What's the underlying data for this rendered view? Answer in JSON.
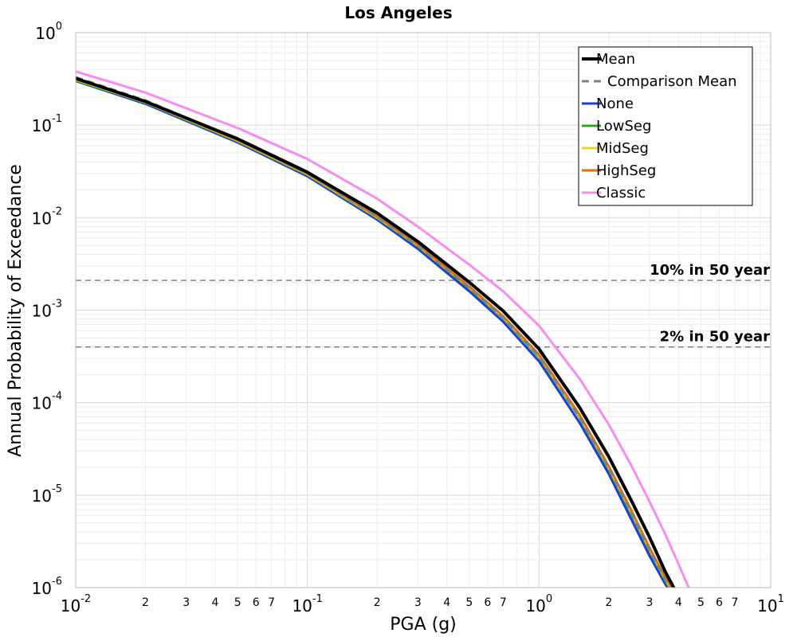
{
  "chart_data": {
    "type": "line",
    "title": "Los Angeles",
    "xlabel": "PGA (g)",
    "ylabel": "Annual Probability of Exceedance",
    "x_scale": "log",
    "y_scale": "log",
    "xlim": [
      0.01,
      10
    ],
    "ylim": [
      1e-06,
      1
    ],
    "grid": true,
    "legend_position": "top-right",
    "x_ticks": [
      {
        "value": 0.01,
        "base": "10",
        "exp": "-2"
      },
      {
        "value": 0.1,
        "base": "10",
        "exp": "-1"
      },
      {
        "value": 1,
        "base": "10",
        "exp": "0"
      },
      {
        "value": 10,
        "base": "10",
        "exp": "1"
      }
    ],
    "x_minor_labels": [
      "2",
      "3",
      "4",
      "5",
      "6",
      "7"
    ],
    "y_ticks": [
      {
        "value": 1,
        "base": "10",
        "exp": "0"
      },
      {
        "value": 0.1,
        "base": "10",
        "exp": "-1"
      },
      {
        "value": 0.01,
        "base": "10",
        "exp": "-2"
      },
      {
        "value": 0.001,
        "base": "10",
        "exp": "-3"
      },
      {
        "value": 0.0001,
        "base": "10",
        "exp": "-4"
      },
      {
        "value": 1e-05,
        "base": "10",
        "exp": "-5"
      },
      {
        "value": 1e-06,
        "base": "10",
        "exp": "-6"
      }
    ],
    "reference_lines": [
      {
        "label": "10% in 50 year",
        "y": 0.0021,
        "color": "#808080"
      },
      {
        "label": "2% in 50 year",
        "y": 0.0004,
        "color": "#808080"
      }
    ],
    "series": [
      {
        "name": "None",
        "color": "#1a3fd6",
        "dash": "solid",
        "width": 3,
        "x": [
          0.01,
          0.02,
          0.05,
          0.1,
          0.2,
          0.3,
          0.5,
          0.7,
          1.0,
          1.5,
          2.0,
          2.5,
          3.0,
          3.5,
          3.8
        ],
        "y": [
          0.3,
          0.17,
          0.065,
          0.028,
          0.0095,
          0.0046,
          0.0016,
          0.00075,
          0.00028,
          6e-05,
          1.7e-05,
          5.5e-06,
          2.2e-06,
          1.1e-06,
          8e-07
        ]
      },
      {
        "name": "LowSeg",
        "color": "#3aa02a",
        "dash": "solid",
        "width": 3,
        "x": [
          0.01,
          0.02,
          0.05,
          0.1,
          0.2,
          0.3,
          0.5,
          0.7,
          1.0,
          1.5,
          2.0,
          2.5,
          3.0,
          3.5,
          3.85
        ],
        "y": [
          0.305,
          0.175,
          0.067,
          0.029,
          0.0099,
          0.0049,
          0.00172,
          0.00082,
          0.00031,
          6.8e-05,
          1.9e-05,
          6.3e-06,
          2.5e-06,
          1.2e-06,
          8e-07
        ]
      },
      {
        "name": "MidSeg",
        "color": "#f0d020",
        "dash": "solid",
        "width": 3,
        "x": [
          0.01,
          0.02,
          0.05,
          0.1,
          0.2,
          0.3,
          0.5,
          0.7,
          1.0,
          1.5,
          2.0,
          2.5,
          3.0,
          3.5,
          3.9
        ],
        "y": [
          0.31,
          0.177,
          0.068,
          0.0295,
          0.0101,
          0.005,
          0.00176,
          0.00084,
          0.00032,
          7e-05,
          1.98e-05,
          6.6e-06,
          2.6e-06,
          1.25e-06,
          8e-07
        ]
      },
      {
        "name": "HighSeg",
        "color": "#ee6611",
        "dash": "solid",
        "width": 3,
        "x": [
          0.01,
          0.02,
          0.05,
          0.1,
          0.2,
          0.3,
          0.5,
          0.7,
          1.0,
          1.5,
          2.0,
          2.5,
          3.0,
          3.5,
          3.95
        ],
        "y": [
          0.315,
          0.18,
          0.069,
          0.03,
          0.0103,
          0.0051,
          0.0018,
          0.00086,
          0.00033,
          7.3e-05,
          2.05e-05,
          6.9e-06,
          2.7e-06,
          1.3e-06,
          8e-07
        ]
      },
      {
        "name": "Comparison Mean",
        "color": "#808080",
        "dash": "dashed",
        "width": 3,
        "x": [
          0.01,
          0.02,
          0.05,
          0.1,
          0.2,
          0.3,
          0.5,
          0.7,
          1.0,
          1.5,
          2.0,
          2.5,
          3.0,
          3.5,
          3.9
        ],
        "y": [
          0.33,
          0.185,
          0.07,
          0.03,
          0.0102,
          0.005,
          0.00175,
          0.00084,
          0.00032,
          7e-05,
          2e-05,
          6.6e-06,
          2.6e-06,
          1.25e-06,
          8e-07
        ]
      },
      {
        "name": "Classic",
        "color": "#f78cf0",
        "dash": "solid",
        "width": 3,
        "x": [
          0.01,
          0.02,
          0.05,
          0.1,
          0.2,
          0.3,
          0.5,
          0.7,
          1.0,
          1.5,
          2.0,
          2.5,
          3.0,
          3.5,
          4.0,
          4.6,
          4.8
        ],
        "y": [
          0.38,
          0.225,
          0.093,
          0.043,
          0.016,
          0.008,
          0.0031,
          0.0016,
          0.00068,
          0.00018,
          5.8e-05,
          2.1e-05,
          8.5e-06,
          3.8e-06,
          1.8e-06,
          8e-07,
          6e-07
        ]
      },
      {
        "name": "Mean",
        "color": "#000000",
        "dash": "solid",
        "width": 4,
        "x": [
          0.01,
          0.02,
          0.05,
          0.1,
          0.2,
          0.3,
          0.5,
          0.7,
          1.0,
          1.5,
          2.0,
          2.5,
          3.0,
          3.5,
          4.0,
          4.2
        ],
        "y": [
          0.32,
          0.18,
          0.071,
          0.031,
          0.0112,
          0.0055,
          0.002,
          0.00098,
          0.00038,
          8.8e-05,
          2.6e-05,
          8.8e-06,
          3.5e-06,
          1.5e-06,
          8e-07,
          6e-07
        ]
      }
    ],
    "legend_order": [
      "Mean",
      "Comparison Mean",
      "None",
      "LowSeg",
      "MidSeg",
      "HighSeg",
      "Classic"
    ]
  }
}
